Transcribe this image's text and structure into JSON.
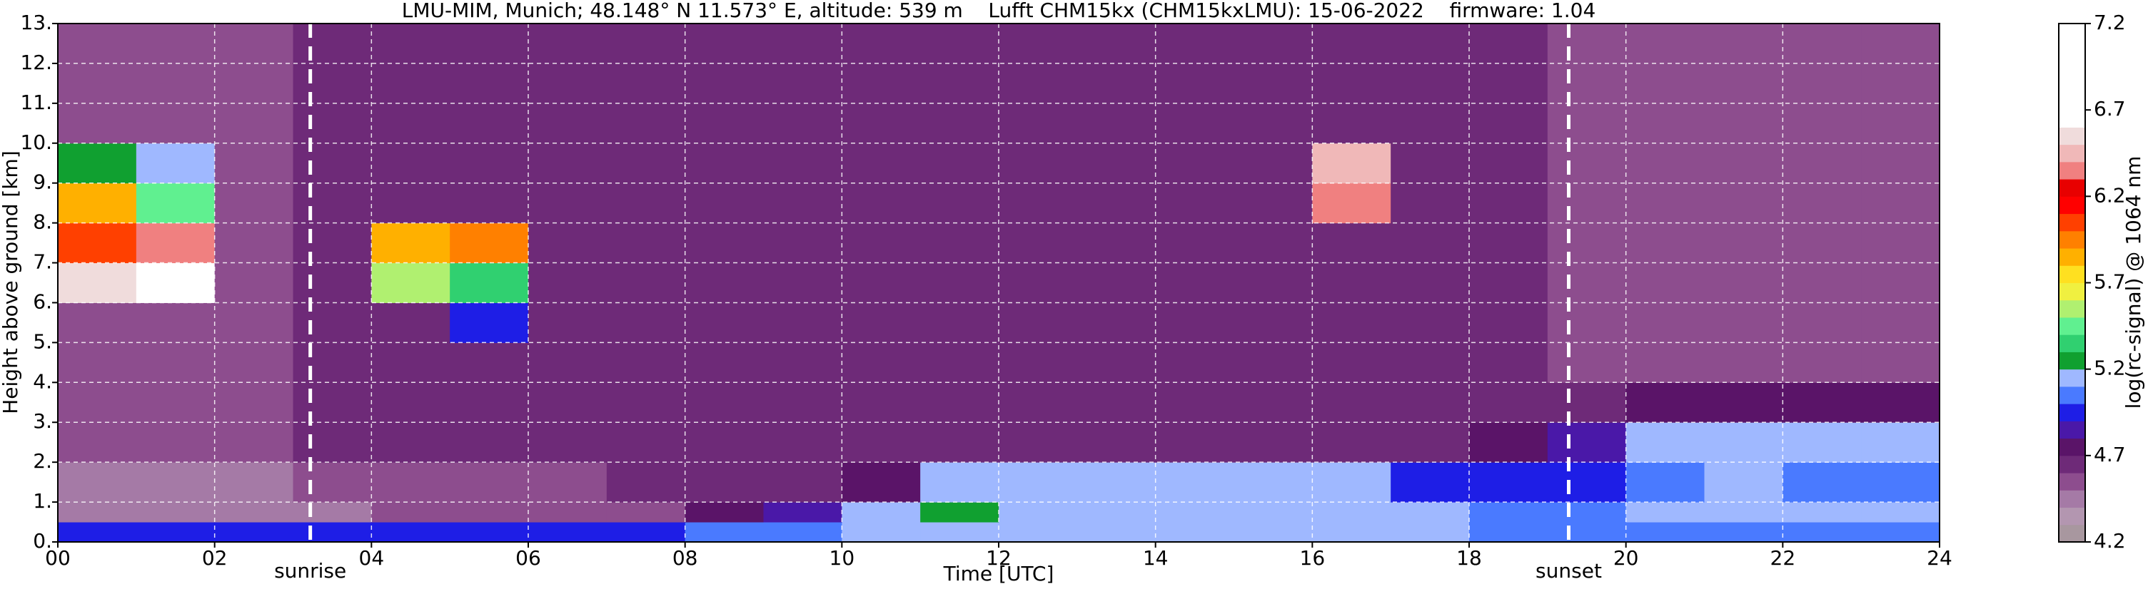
{
  "chart_data": {
    "type": "heatmap",
    "title": "LMU-MIM, Munich; 48.148° N 11.573° E, altitude: 539 m    Lufft CHM15kx (CHM15kxLMU): 15-06-2022    firmware: 1.04",
    "x_label": "Time [UTC]",
    "y_label": "Height above ground [km]",
    "colorbar_label": "log(rc-signal) @ 1064 nm",
    "xlim": [
      0,
      24
    ],
    "xticks": [
      {
        "value": 0,
        "label": "00"
      },
      {
        "value": 2,
        "label": "02"
      },
      {
        "value": 4,
        "label": "04"
      },
      {
        "value": 6,
        "label": "06"
      },
      {
        "value": 8,
        "label": "08"
      },
      {
        "value": 10,
        "label": "10"
      },
      {
        "value": 12,
        "label": "12"
      },
      {
        "value": 14,
        "label": "14"
      },
      {
        "value": 16,
        "label": "16"
      },
      {
        "value": 18,
        "label": "18"
      },
      {
        "value": 20,
        "label": "20"
      },
      {
        "value": 22,
        "label": "22"
      },
      {
        "value": 24,
        "label": "24"
      }
    ],
    "ylim": [
      0,
      13
    ],
    "yticks": [
      {
        "value": 0,
        "label": "0."
      },
      {
        "value": 1,
        "label": "1."
      },
      {
        "value": 2,
        "label": "2."
      },
      {
        "value": 3,
        "label": "3."
      },
      {
        "value": 4,
        "label": "4."
      },
      {
        "value": 5,
        "label": "5."
      },
      {
        "value": 6,
        "label": "6."
      },
      {
        "value": 7,
        "label": "7."
      },
      {
        "value": 8,
        "label": "8."
      },
      {
        "value": 9,
        "label": "9."
      },
      {
        "value": 10,
        "label": "10."
      },
      {
        "value": 11,
        "label": "11."
      },
      {
        "value": 12,
        "label": "12."
      },
      {
        "value": 13,
        "label": "13."
      }
    ],
    "zlim": [
      4.2,
      7.2
    ],
    "zticks": [
      4.2,
      4.7,
      5.2,
      5.7,
      6.2,
      6.7,
      7.2
    ],
    "grid": true,
    "colormap": [
      "#a8979f",
      "#b396b0",
      "#a57aa6",
      "#8d4d8e",
      "#6e2a78",
      "#5a1468",
      "#4a18a8",
      "#1e1ee6",
      "#4a7aff",
      "#9fb8ff",
      "#10a030",
      "#30d070",
      "#60f090",
      "#b0f070",
      "#f0f040",
      "#ffe020",
      "#ffb000",
      "#ff8000",
      "#ff4000",
      "#ff0000",
      "#e80000",
      "#f08080",
      "#f0b8b8",
      "#f0dcdc",
      "#ffffff",
      "#ffffff",
      "#ffffff",
      "#ffffff",
      "#ffffff",
      "#ffffff"
    ],
    "annotations": [
      {
        "x": 3.22,
        "label": "sunrise"
      },
      {
        "x": 19.27,
        "label": "sunset"
      }
    ],
    "x_bins": [
      0,
      1,
      2,
      3,
      4,
      5,
      6,
      7,
      8,
      9,
      10,
      11,
      12,
      13,
      14,
      15,
      16,
      17,
      18,
      19,
      20,
      21,
      22,
      23,
      24
    ],
    "y_bins": [
      0,
      0.5,
      1,
      2,
      3,
      4,
      5,
      6,
      7,
      8,
      9,
      10,
      11,
      12,
      13
    ],
    "z": [
      [
        4.9,
        4.9,
        4.9,
        4.9,
        4.9,
        4.9,
        4.9,
        4.9,
        5.0,
        5.0,
        5.1,
        5.1,
        5.1,
        5.1,
        5.1,
        5.1,
        5.1,
        5.1,
        5.05,
        5.05,
        5.0,
        5.0,
        5.0,
        5.0
      ],
      [
        4.4,
        4.4,
        4.4,
        4.45,
        4.5,
        4.5,
        4.5,
        4.5,
        4.75,
        4.85,
        5.15,
        5.2,
        5.15,
        5.1,
        5.1,
        5.1,
        5.15,
        5.1,
        5.05,
        5.0,
        5.1,
        5.1,
        5.1,
        5.1
      ],
      [
        4.4,
        4.4,
        4.4,
        4.5,
        4.55,
        4.55,
        4.55,
        4.6,
        4.65,
        4.65,
        4.7,
        5.15,
        5.15,
        5.1,
        5.1,
        5.15,
        5.15,
        4.95,
        4.9,
        4.9,
        5.05,
        5.1,
        5.05,
        5.05
      ],
      [
        4.55,
        4.55,
        4.55,
        4.6,
        4.6,
        4.6,
        4.6,
        4.6,
        4.65,
        4.65,
        4.6,
        4.6,
        4.6,
        4.6,
        4.6,
        4.6,
        4.6,
        4.6,
        4.7,
        4.85,
        5.15,
        5.1,
        5.15,
        5.15
      ],
      [
        4.55,
        4.55,
        4.55,
        4.6,
        4.6,
        4.6,
        4.6,
        4.6,
        4.6,
        4.6,
        4.6,
        4.6,
        4.6,
        4.6,
        4.6,
        4.6,
        4.6,
        4.6,
        4.6,
        4.65,
        4.75,
        4.75,
        4.75,
        4.75
      ],
      [
        4.55,
        4.55,
        4.55,
        4.6,
        4.6,
        4.6,
        4.6,
        4.6,
        4.6,
        4.6,
        4.6,
        4.6,
        4.6,
        4.6,
        4.6,
        4.6,
        4.6,
        4.6,
        4.6,
        4.55,
        4.55,
        4.55,
        4.55,
        4.55
      ],
      [
        4.55,
        4.55,
        4.55,
        4.6,
        4.6,
        4.9,
        4.6,
        4.6,
        4.6,
        4.6,
        4.6,
        4.6,
        4.6,
        4.6,
        4.6,
        4.6,
        4.6,
        4.6,
        4.6,
        4.55,
        4.55,
        4.55,
        4.55,
        4.55
      ],
      [
        6.5,
        6.7,
        4.55,
        4.6,
        5.5,
        5.3,
        4.6,
        4.6,
        4.6,
        4.6,
        4.6,
        4.6,
        4.6,
        4.6,
        4.6,
        4.6,
        4.6,
        4.6,
        4.6,
        4.55,
        4.55,
        4.55,
        4.55,
        4.55
      ],
      [
        6.0,
        6.3,
        4.55,
        4.6,
        5.8,
        5.9,
        4.6,
        4.6,
        4.6,
        4.6,
        4.6,
        4.6,
        4.6,
        4.6,
        4.6,
        4.6,
        4.6,
        4.6,
        4.6,
        4.55,
        4.55,
        4.55,
        4.55,
        4.55
      ],
      [
        5.8,
        5.4,
        4.55,
        4.6,
        4.6,
        4.6,
        4.6,
        4.6,
        4.6,
        4.6,
        4.6,
        4.6,
        4.6,
        4.6,
        4.6,
        4.6,
        6.3,
        4.6,
        4.6,
        4.55,
        4.55,
        4.55,
        4.55,
        4.55
      ],
      [
        5.2,
        5.1,
        4.55,
        4.6,
        4.6,
        4.6,
        4.6,
        4.6,
        4.6,
        4.6,
        4.6,
        4.6,
        4.6,
        4.6,
        4.6,
        4.6,
        6.4,
        4.6,
        4.6,
        4.55,
        4.55,
        4.55,
        4.55,
        4.55
      ],
      [
        4.55,
        4.55,
        4.55,
        4.6,
        4.6,
        4.6,
        4.6,
        4.6,
        4.6,
        4.6,
        4.6,
        4.6,
        4.6,
        4.6,
        4.6,
        4.6,
        4.6,
        4.6,
        4.6,
        4.55,
        4.55,
        4.55,
        4.55,
        4.55
      ],
      [
        4.55,
        4.55,
        4.55,
        4.6,
        4.6,
        4.6,
        4.6,
        4.6,
        4.6,
        4.6,
        4.6,
        4.6,
        4.6,
        4.6,
        4.6,
        4.6,
        4.6,
        4.6,
        4.6,
        4.55,
        4.55,
        4.55,
        4.55,
        4.55
      ],
      [
        4.55,
        4.55,
        4.55,
        4.6,
        4.6,
        4.6,
        4.6,
        4.6,
        4.6,
        4.6,
        4.6,
        4.6,
        4.6,
        4.6,
        4.6,
        4.6,
        4.6,
        4.6,
        4.6,
        4.55,
        4.55,
        4.55,
        4.55,
        4.55
      ]
    ]
  }
}
